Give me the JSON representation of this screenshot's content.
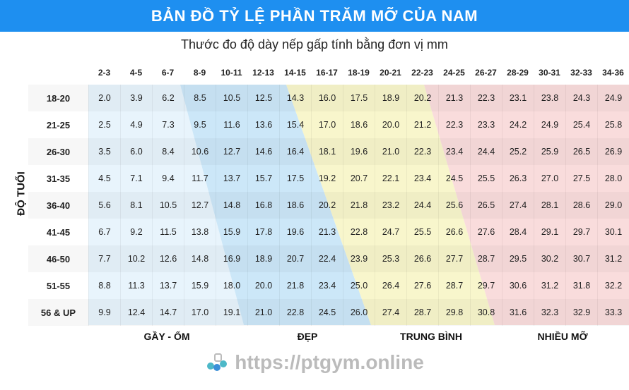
{
  "title": "BẢN ĐỒ TỶ LỆ PHẦN TRĂM MỠ CỦA NAM",
  "subtitle": "Thước đo độ dày nếp gấp tính bằng đơn vị mm",
  "y_axis_label": "ĐỘ TUỔI",
  "categories_labels": [
    "GẦY - ỐM",
    "ĐẸP",
    "TRUNG BÌNH",
    "NHIỀU MỠ"
  ],
  "watermark": "https://ptgym.online",
  "colors": {
    "title_bg": "#1e8ff0",
    "lean": "#e8f4fc",
    "ideal": "#cce7f8",
    "average": "#f8f6cc",
    "over": "#f9dcdc"
  },
  "chart_data": {
    "type": "table",
    "title": "BẢN ĐỒ TỶ LỆ PHẦN TRĂM MỠ CỦA NAM",
    "xlabel": "Thước đo độ dày nếp gấp tính bằng đơn vị mm",
    "ylabel": "ĐỘ TUỔI",
    "columns": [
      "2-3",
      "4-5",
      "6-7",
      "8-9",
      "10-11",
      "12-13",
      "14-15",
      "16-17",
      "18-19",
      "20-21",
      "22-23",
      "24-25",
      "26-27",
      "28-29",
      "30-31",
      "32-33",
      "34-36"
    ],
    "rows": [
      {
        "age": "18-20",
        "values": [
          "2.0",
          "3.9",
          "6.2",
          "8.5",
          "10.5",
          "12.5",
          "14.3",
          "16.0",
          "17.5",
          "18.9",
          "20.2",
          "21.3",
          "22.3",
          "23.1",
          "23.8",
          "24.3",
          "24.9"
        ]
      },
      {
        "age": "21-25",
        "values": [
          "2.5",
          "4.9",
          "7.3",
          "9.5",
          "11.6",
          "13.6",
          "15.4",
          "17.0",
          "18.6",
          "20.0",
          "21.2",
          "22.3",
          "23.3",
          "24.2",
          "24.9",
          "25.4",
          "25.8"
        ]
      },
      {
        "age": "26-30",
        "values": [
          "3.5",
          "6.0",
          "8.4",
          "10.6",
          "12.7",
          "14.6",
          "16.4",
          "18.1",
          "19.6",
          "21.0",
          "22.3",
          "23.4",
          "24.4",
          "25.2",
          "25.9",
          "26.5",
          "26.9"
        ]
      },
      {
        "age": "31-35",
        "values": [
          "4.5",
          "7.1",
          "9.4",
          "11.7",
          "13.7",
          "15.7",
          "17.5",
          "19.2",
          "20.7",
          "22.1",
          "23.4",
          "24.5",
          "25.5",
          "26.3",
          "27.0",
          "27.5",
          "28.0"
        ]
      },
      {
        "age": "36-40",
        "values": [
          "5.6",
          "8.1",
          "10.5",
          "12.7",
          "14.8",
          "16.8",
          "18.6",
          "20.2",
          "21.8",
          "23.2",
          "24.4",
          "25.6",
          "26.5",
          "27.4",
          "28.1",
          "28.6",
          "29.0"
        ]
      },
      {
        "age": "41-45",
        "values": [
          "6.7",
          "9.2",
          "11.5",
          "13.8",
          "15.9",
          "17.8",
          "19.6",
          "21.3",
          "22.8",
          "24.7",
          "25.5",
          "26.6",
          "27.6",
          "28.4",
          "29.1",
          "29.7",
          "30.1"
        ]
      },
      {
        "age": "46-50",
        "values": [
          "7.7",
          "10.2",
          "12.6",
          "14.8",
          "16.9",
          "18.9",
          "20.7",
          "22.4",
          "23.9",
          "25.3",
          "26.6",
          "27.7",
          "28.7",
          "29.5",
          "30.2",
          "30.7",
          "31.2"
        ]
      },
      {
        "age": "51-55",
        "values": [
          "8.8",
          "11.3",
          "13.7",
          "15.9",
          "18.0",
          "20.0",
          "21.8",
          "23.4",
          "25.0",
          "26.4",
          "27.6",
          "28.7",
          "29.7",
          "30.6",
          "31.2",
          "31.8",
          "32.2"
        ]
      },
      {
        "age": "56 & UP",
        "values": [
          "9.9",
          "12.4",
          "14.7",
          "17.0",
          "19.1",
          "21.0",
          "22.8",
          "24.5",
          "26.0",
          "27.4",
          "28.7",
          "29.8",
          "30.8",
          "31.6",
          "32.3",
          "32.9",
          "33.3"
        ]
      }
    ]
  }
}
